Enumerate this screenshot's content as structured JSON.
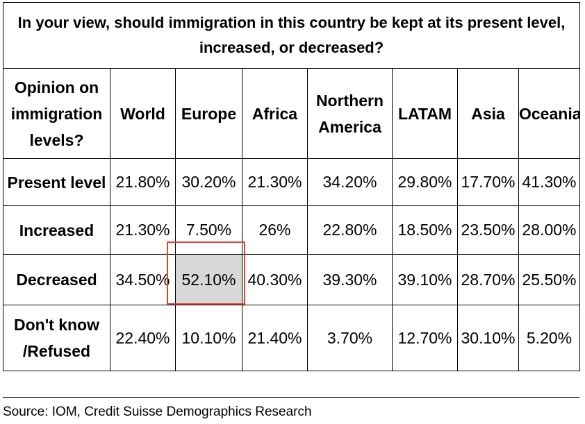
{
  "chart_data": {
    "type": "table",
    "title": "In your view, should immigration in this country be kept at its present level, increased, or decreased?",
    "row_header": "Opinion on immigration levels?",
    "columns": [
      "World",
      "Europe",
      "Africa",
      "Northern America",
      "LATAM",
      "Asia",
      "Oceania"
    ],
    "rows": [
      {
        "label": "Present level",
        "values": [
          "21.80%",
          "30.20%",
          "21.30%",
          "34.20%",
          "29.80%",
          "17.70%",
          "41.30%"
        ]
      },
      {
        "label": "Increased",
        "values": [
          "21.30%",
          "7.50%",
          "26%",
          "22.80%",
          "18.50%",
          "23.50%",
          "28.00%"
        ]
      },
      {
        "label": "Decreased",
        "values": [
          "34.50%",
          "52.10%",
          "40.30%",
          "39.30%",
          "39.10%",
          "28.70%",
          "25.50%"
        ]
      },
      {
        "label": "Don't know /Refused",
        "values": [
          "22.40%",
          "10.10%",
          "21.40%",
          "3.70%",
          "12.70%",
          "30.10%",
          "5.20%"
        ]
      }
    ],
    "highlight": {
      "row": "Decreased",
      "column": "Europe",
      "value": "52.10%",
      "fill_color": "#d8d8d8",
      "border_color": "#e0432b"
    }
  },
  "source": "Source: IOM, Credit Suisse Demographics Research"
}
